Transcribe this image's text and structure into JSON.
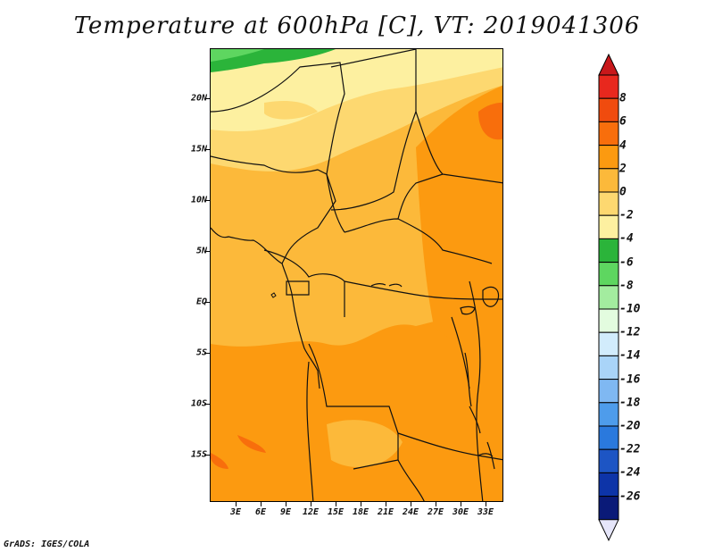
{
  "title": "Temperature at 600hPa [C], VT: 2019041306",
  "footer": "GrADS: IGES/COLA",
  "map": {
    "type": "filled-contour",
    "variable": "Temperature",
    "level": "600hPa",
    "units": "C",
    "valid_time": "2019041306",
    "lon_labels": [
      "3E",
      "6E",
      "9E",
      "12E",
      "15E",
      "18E",
      "21E",
      "24E",
      "27E",
      "30E",
      "33E"
    ],
    "lat_labels": [
      "20N",
      "15N",
      "10N",
      "5N",
      "EQ",
      "5S",
      "10S",
      "15S"
    ]
  },
  "colorbar": {
    "levels": [
      "8",
      "6",
      "4",
      "2",
      "0",
      "-2",
      "-4",
      "-6",
      "-8",
      "-10",
      "-12",
      "-14",
      "-16",
      "-18",
      "-20",
      "-22",
      "-24",
      "-26"
    ],
    "colors": [
      "#e8281e",
      "#f04b0e",
      "#f86e0c",
      "#fc9a10",
      "#fcb93a",
      "#fdd870",
      "#fdf0a0",
      "#2bb43a",
      "#5ed660",
      "#a3ec9f",
      "#e3fcdf",
      "#d2ecfc",
      "#a9d4f8",
      "#7fb8f2",
      "#4e9ceb",
      "#2a79dd",
      "#1d55c4",
      "#0d34a8",
      "#0a1a78"
    ],
    "top_arrow_color": "#c8181b",
    "bottom_arrow_color": "#e6e6fa"
  }
}
